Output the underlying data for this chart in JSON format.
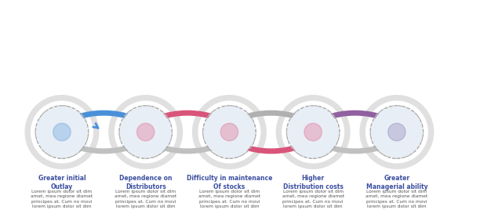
{
  "steps": [
    {
      "title": "Greater initial\nOutlay",
      "body": "Lorem ipsum dolor sit dim\namet, mea regione diamet\nprincipes at. Cum no movi\nlorem ipsum dolor sit dim",
      "outer_color": "#4a90d9",
      "inner_color": "#c8d8f0",
      "loop_color": "#4a90d9"
    },
    {
      "title": "Dependence on\nDistributors",
      "body": "Lorem ipsum dolor sit dim\namet, mea regione diamet\nprincipes at. Cum no movi\nlorem ipsum dolor sit dim",
      "outer_color": "#e05580",
      "inner_color": "#f5c6d0",
      "loop_color": "#e05580"
    },
    {
      "title": "Difficulty in maintenance\nOf stocks",
      "body": "Lorem ipsum dolor sit dim\namet, mea regione diamet\nprincipes at. Cum no movi\nlorem ipsum dolor sit dim",
      "outer_color": "#e05580",
      "inner_color": "#f5c6d0",
      "loop_color": "#e05580"
    },
    {
      "title": "Higher\nDistribution costs",
      "body": "Lorem ipsum dolor sit dim\namet, mea regione diamet\nprincipes at. Cum no movi\nlorem ipsum dolor sit dim",
      "outer_color": "#e05580",
      "inner_color": "#f5c6d0",
      "loop_color": "#e05580"
    },
    {
      "title": "Greater\nManagerial ability",
      "body": "Lorem ipsum dolor sit dim\namet, mea regione diamet\nprincipes at. Cum no movi\nlorem ipsum dolor sit dim",
      "outer_color": "#7b6faa",
      "inner_color": "#d5d0e8",
      "loop_color": "#7b6faa"
    }
  ],
  "loop_colors": [
    "#4a90d9",
    "#c85080",
    "#c0c0c0",
    "#c85080",
    "#7b6faa"
  ],
  "title_color": "#3b4fa0",
  "body_color": "#555555",
  "bg_color": "#ffffff"
}
